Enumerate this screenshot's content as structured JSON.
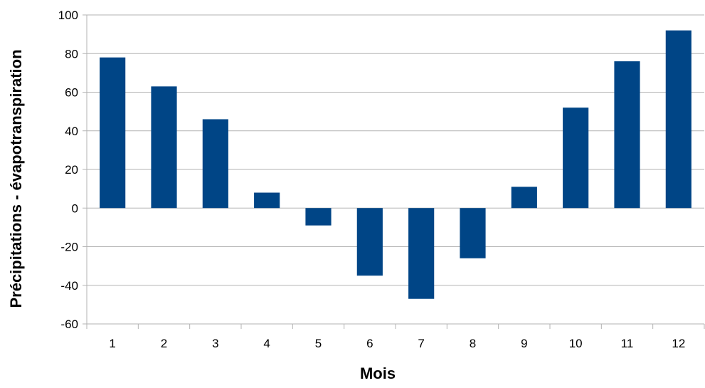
{
  "chart_data": {
    "type": "bar",
    "categories": [
      "1",
      "2",
      "3",
      "4",
      "5",
      "6",
      "7",
      "8",
      "9",
      "10",
      "11",
      "12"
    ],
    "values": [
      78,
      63,
      46,
      8,
      -9,
      -35,
      -47,
      -26,
      11,
      52,
      76,
      92
    ],
    "xlabel": "Mois",
    "ylabel": "Précipitations - évapotranspiration",
    "ylim": [
      -60,
      100
    ],
    "yticks": [
      "100",
      "80",
      "60",
      "40",
      "20",
      "0",
      "-20",
      "-40",
      "-60"
    ],
    "grid": "horizontal",
    "legend": "none",
    "bar_color": "#004586",
    "grid_color": "#b3b3b3"
  }
}
